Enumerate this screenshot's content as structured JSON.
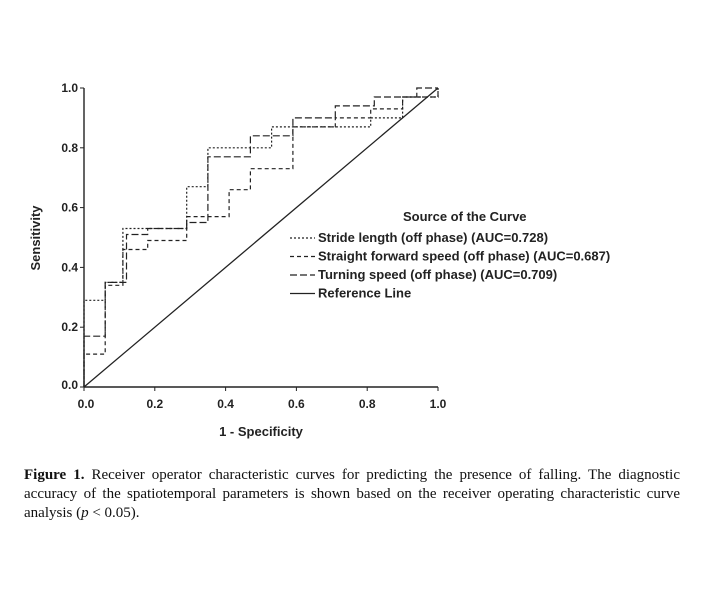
{
  "chart_data": {
    "type": "line",
    "xlabel": "1 - Specificity",
    "ylabel": "Sensitivity",
    "xlim": [
      0,
      1
    ],
    "ylim": [
      0,
      1
    ],
    "x_ticks": [
      "0.0",
      "0.2",
      "0.4",
      "0.6",
      "0.8",
      "1.0"
    ],
    "y_ticks": [
      "0.0",
      "0.2",
      "0.4",
      "0.6",
      "0.8",
      "1.0"
    ],
    "legend_title": "Source of the Curve",
    "legend_position": "right",
    "grid": false,
    "series": [
      {
        "name": "Stride length (off phase) (AUC=0.728)",
        "style": "dotted",
        "points": [
          [
            0,
            0
          ],
          [
            0,
            0.29
          ],
          [
            0.06,
            0.29
          ],
          [
            0.06,
            0.35
          ],
          [
            0.11,
            0.35
          ],
          [
            0.11,
            0.53
          ],
          [
            0.29,
            0.53
          ],
          [
            0.29,
            0.67
          ],
          [
            0.35,
            0.67
          ],
          [
            0.35,
            0.8
          ],
          [
            0.53,
            0.8
          ],
          [
            0.53,
            0.87
          ],
          [
            0.81,
            0.87
          ],
          [
            0.81,
            0.9
          ],
          [
            0.9,
            0.9
          ],
          [
            0.9,
            0.97
          ],
          [
            1,
            0.97
          ],
          [
            1,
            1
          ]
        ]
      },
      {
        "name": "Straight forward speed (off phase) (AUC=0.687)",
        "style": "dashed",
        "points": [
          [
            0,
            0
          ],
          [
            0,
            0.11
          ],
          [
            0.06,
            0.11
          ],
          [
            0.06,
            0.34
          ],
          [
            0.11,
            0.34
          ],
          [
            0.11,
            0.46
          ],
          [
            0.18,
            0.46
          ],
          [
            0.18,
            0.49
          ],
          [
            0.29,
            0.49
          ],
          [
            0.29,
            0.57
          ],
          [
            0.41,
            0.57
          ],
          [
            0.41,
            0.66
          ],
          [
            0.47,
            0.66
          ],
          [
            0.47,
            0.73
          ],
          [
            0.59,
            0.73
          ],
          [
            0.59,
            0.87
          ],
          [
            0.71,
            0.87
          ],
          [
            0.71,
            0.9
          ],
          [
            0.81,
            0.9
          ],
          [
            0.81,
            0.93
          ],
          [
            0.9,
            0.93
          ],
          [
            0.9,
            0.97
          ],
          [
            1,
            0.97
          ],
          [
            1,
            1
          ]
        ]
      },
      {
        "name": "Turning speed (off phase) (AUC=0.709)",
        "style": "longdash",
        "points": [
          [
            0,
            0
          ],
          [
            0,
            0.17
          ],
          [
            0.06,
            0.17
          ],
          [
            0.06,
            0.35
          ],
          [
            0.12,
            0.35
          ],
          [
            0.12,
            0.51
          ],
          [
            0.18,
            0.51
          ],
          [
            0.18,
            0.53
          ],
          [
            0.29,
            0.53
          ],
          [
            0.29,
            0.55
          ],
          [
            0.35,
            0.55
          ],
          [
            0.35,
            0.77
          ],
          [
            0.47,
            0.77
          ],
          [
            0.47,
            0.84
          ],
          [
            0.59,
            0.84
          ],
          [
            0.59,
            0.9
          ],
          [
            0.71,
            0.9
          ],
          [
            0.71,
            0.94
          ],
          [
            0.82,
            0.94
          ],
          [
            0.82,
            0.97
          ],
          [
            0.94,
            0.97
          ],
          [
            0.94,
            1
          ],
          [
            1,
            1
          ]
        ]
      },
      {
        "name": "Reference Line",
        "style": "solid",
        "points": [
          [
            0,
            0
          ],
          [
            1,
            1
          ]
        ]
      }
    ]
  },
  "caption": {
    "label": "Figure 1.",
    "text": " Receiver operator characteristic curves for predicting the presence of falling. The diagnostic accuracy of the spatiotemporal parameters is shown based on the receiver operating characteristic curve analysis (",
    "p_symbol": "p",
    "text_end": " < 0.05)."
  }
}
